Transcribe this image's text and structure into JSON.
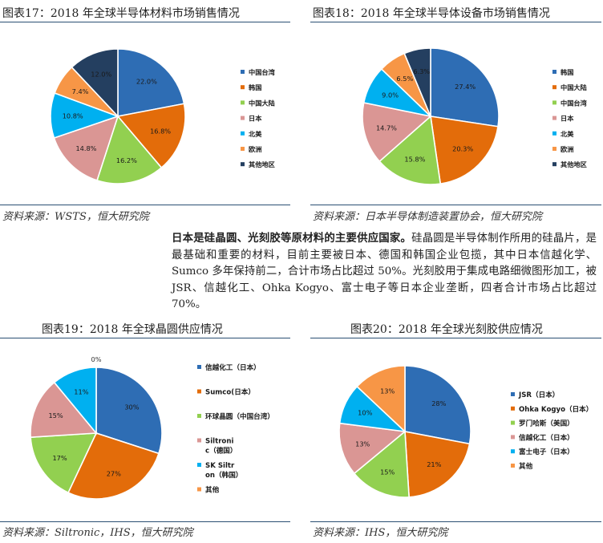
{
  "charts": [
    {
      "title": "图表17：2018 年全球半导体材料市场销售情况",
      "source": "资料来源：WSTS，恒大研究院",
      "chart_data": {
        "type": "pie",
        "title": "图表17：2018 年全球半导体材料市场销售情况",
        "categories": [
          "中国台湾",
          "韩国",
          "中国大陆",
          "日本",
          "北美",
          "欧洲",
          "其他地区"
        ],
        "values": [
          22.0,
          16.8,
          16.2,
          14.8,
          10.8,
          7.4,
          12.0
        ],
        "labels": [
          "22.0%",
          "16.8%",
          "16.2%",
          "14.8%",
          "10.8%",
          "7.4%",
          "12.0%"
        ],
        "colors": [
          "#2e6db4",
          "#e36c0a",
          "#92d050",
          "#da9694",
          "#00b0f0",
          "#f79646",
          "#243f60"
        ],
        "legend_position": "right"
      }
    },
    {
      "title": "图表18：2018 年全球半导体设备市场销售情况",
      "source": "资料来源：日本半导体制造装置协会，恒大研究院",
      "chart_data": {
        "type": "pie",
        "title": "图表18：2018 年全球半导体设备市场销售情况",
        "categories": [
          "韩国",
          "中国大陆",
          "中国台湾",
          "日本",
          "北美",
          "欧洲",
          "其他地区"
        ],
        "values": [
          27.4,
          20.3,
          15.8,
          14.7,
          9.0,
          6.5,
          6.3
        ],
        "labels": [
          "27.4%",
          "20.3%",
          "15.8%",
          "14.7%",
          "9.0%",
          "6.5%",
          "6.3%"
        ],
        "colors": [
          "#2e6db4",
          "#e36c0a",
          "#92d050",
          "#da9694",
          "#00b0f0",
          "#f79646",
          "#243f60"
        ],
        "legend_position": "right"
      }
    },
    {
      "title": "图表19：2018 年全球晶圆供应情况",
      "source": "资料来源：Siltronic，IHS，恒大研究院",
      "chart_data": {
        "type": "pie",
        "title": "图表19：2018 年全球晶圆供应情况",
        "categories": [
          "信越化工（日本）",
          "Sumco(日本）",
          "环球晶圆（中国台湾）",
          "Siltronic（德国）",
          "SK Siltron（韩国）",
          "其他"
        ],
        "values": [
          30,
          27,
          17,
          15,
          11,
          0
        ],
        "labels": [
          "30%",
          "27%",
          "17%",
          "15%",
          "11%",
          "0%"
        ],
        "colors": [
          "#2e6db4",
          "#e36c0a",
          "#92d050",
          "#da9694",
          "#00b0f0",
          "#f79646"
        ],
        "legend_position": "right"
      }
    },
    {
      "title": "图表20：2018 年全球光刻胶供应情况",
      "source": "资料来源：IHS，恒大研究院",
      "chart_data": {
        "type": "pie",
        "title": "图表20：2018 年全球光刻胶供应情况",
        "categories": [
          "JSR（日本）",
          "Ohka Kogyo（日本）",
          "罗门哈斯（美国）",
          "信越化工（日本）",
          "富士电子（日本）",
          "其他"
        ],
        "values": [
          28,
          21,
          15,
          13,
          10,
          13
        ],
        "labels": [
          "28%",
          "21%",
          "15%",
          "13%",
          "10%",
          "13%"
        ],
        "colors": [
          "#2e6db4",
          "#e36c0a",
          "#92d050",
          "#da9694",
          "#00b0f0",
          "#f79646"
        ],
        "legend_position": "right"
      }
    }
  ],
  "paragraph": {
    "bold": "日本是硅晶圆、光刻胶等原材料的主要供应国家。",
    "text": "硅晶圆是半导体制作所用的硅晶片，是最基础和重要的材料，目前主要被日本、德国和韩国企业包揽，其中日本信越化学、Sumco 多年保持前二，合计市场占比超过 50%。光刻胶用于集成电路细微图形加工，被 JSR、信越化工、Ohka Kogyo、富士电子等日本企业垄断，四者合计市场占比超过 70%。"
  }
}
